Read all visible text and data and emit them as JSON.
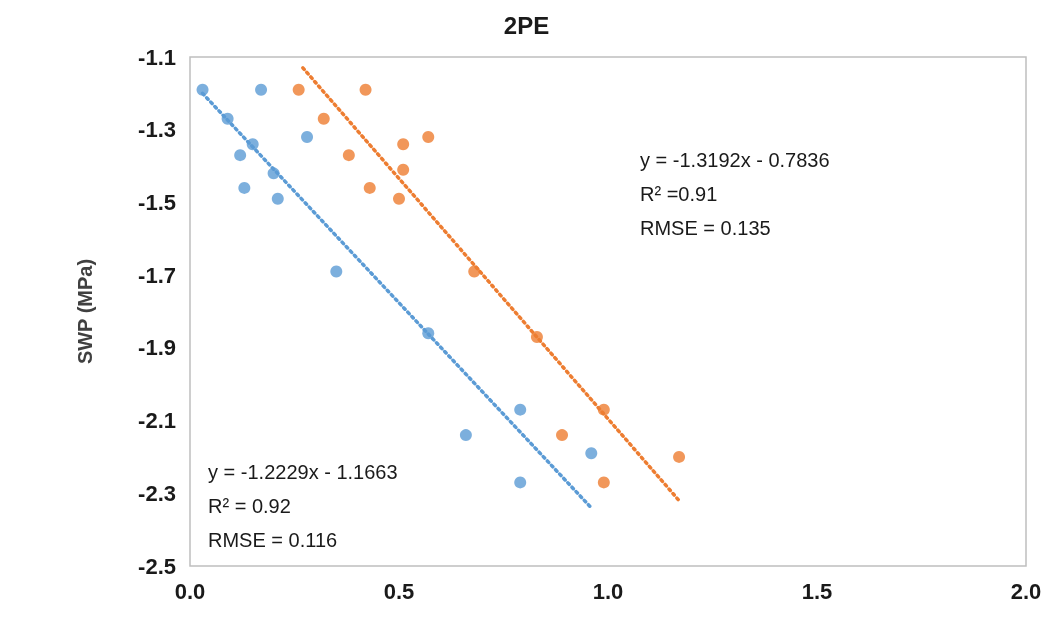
{
  "chart_data": {
    "type": "scatter",
    "title": "2PE",
    "ylabel": "SWP (MPa)",
    "xlim": [
      0,
      2
    ],
    "xticks": [
      {
        "value": 0,
        "label": "0.0"
      },
      {
        "value": 0.5,
        "label": "0.5"
      },
      {
        "value": 1,
        "label": "1.0"
      },
      {
        "value": 1.5,
        "label": "1.5"
      },
      {
        "value": 2,
        "label": "2.0"
      }
    ],
    "ylim": [
      -2.5,
      -1.1
    ],
    "yticks": [
      -2.5,
      -2.3,
      -2.1,
      -1.9,
      -1.7,
      -1.5,
      -1.3,
      -1.1
    ],
    "grid": false,
    "marker": "circle",
    "series": [
      {
        "color": "#5b9bd5",
        "x": [
          0.03,
          0.17,
          0.09,
          0.15,
          0.12,
          0.28,
          0.2,
          0.13,
          0.21,
          0.35,
          0.57,
          0.79,
          0.66,
          0.96,
          0.79
        ],
        "values": [
          -1.19,
          -1.19,
          -1.27,
          -1.34,
          -1.37,
          -1.32,
          -1.42,
          -1.46,
          -1.49,
          -1.69,
          -1.86,
          -2.07,
          -2.14,
          -2.19,
          -2.27
        ]
      },
      {
        "color": "#ed7d31",
        "x": [
          0.26,
          0.42,
          0.32,
          0.51,
          0.57,
          0.38,
          0.51,
          0.43,
          0.5,
          0.68,
          0.83,
          0.99,
          0.89,
          0.99,
          1.17
        ],
        "values": [
          -1.19,
          -1.19,
          -1.27,
          -1.34,
          -1.32,
          -1.37,
          -1.41,
          -1.46,
          -1.49,
          -1.69,
          -1.87,
          -2.07,
          -2.14,
          -2.27,
          -2.2
        ]
      },
      {
        "type": "line",
        "color": "#5b9bd5",
        "line_style": "dotted",
        "marker": "none",
        "x": [
          0.03,
          0.96
        ],
        "values": [
          -1.2,
          -2.34
        ]
      },
      {
        "type": "line",
        "color": "#ed7d31",
        "line_style": "dotted",
        "marker": "none",
        "x": [
          0.27,
          1.17
        ],
        "values": [
          -1.13,
          -2.32
        ]
      }
    ],
    "annotations": [
      "y = -1.3192x - 0.7836\nR² =0.91\nRMSE = 0.135",
      "y = -1.2229x - 1.1663\nR² = 0.92\nRMSE = 0.116"
    ]
  }
}
